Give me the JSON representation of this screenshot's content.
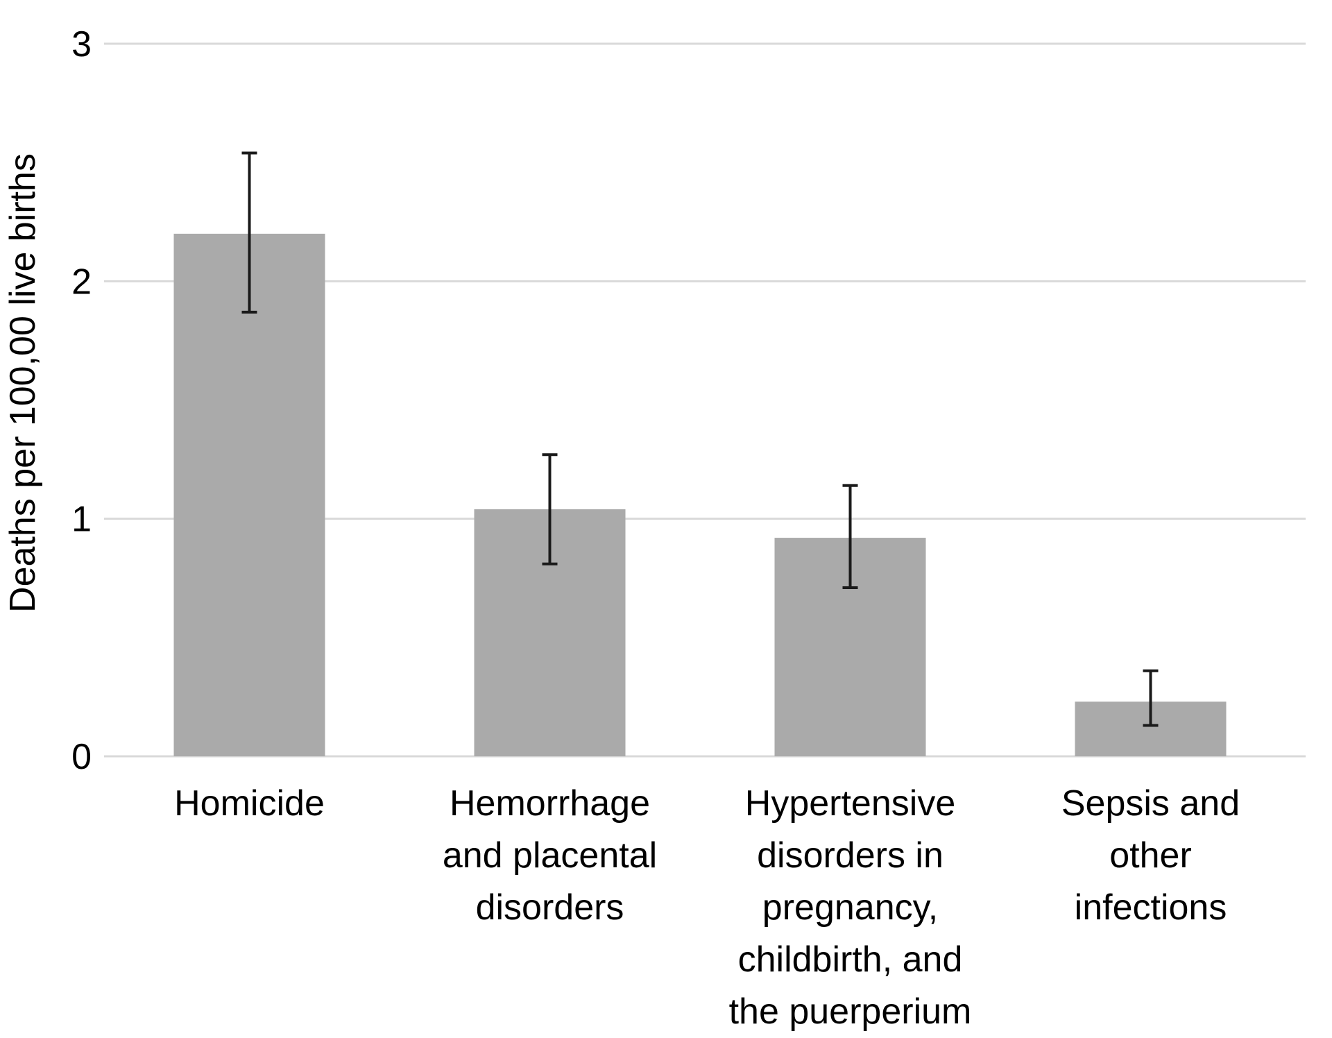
{
  "chart_data": {
    "type": "bar",
    "title": "",
    "xlabel": "",
    "ylabel": "Deaths per 100,00 live births",
    "ylim": [
      0,
      3
    ],
    "yticks": [
      "0",
      "1",
      "2",
      "3"
    ],
    "grid": true,
    "categories": [
      [
        "Homicide"
      ],
      [
        "Hemorrhage",
        "and placental",
        "disorders"
      ],
      [
        "Hypertensive",
        "disorders in",
        "pregnancy,",
        "childbirth, and",
        "the puerperium"
      ],
      [
        "Sepsis and",
        "other",
        "infections"
      ]
    ],
    "values": [
      2.2,
      1.04,
      0.92,
      0.23
    ],
    "error_low": [
      1.87,
      0.81,
      0.71,
      0.13
    ],
    "error_high": [
      2.54,
      1.27,
      1.14,
      0.36
    ],
    "bar_color": "#aaaaaa",
    "gridline_color": "#d9d9d9",
    "error_bar_color": "#1a1a1a"
  }
}
